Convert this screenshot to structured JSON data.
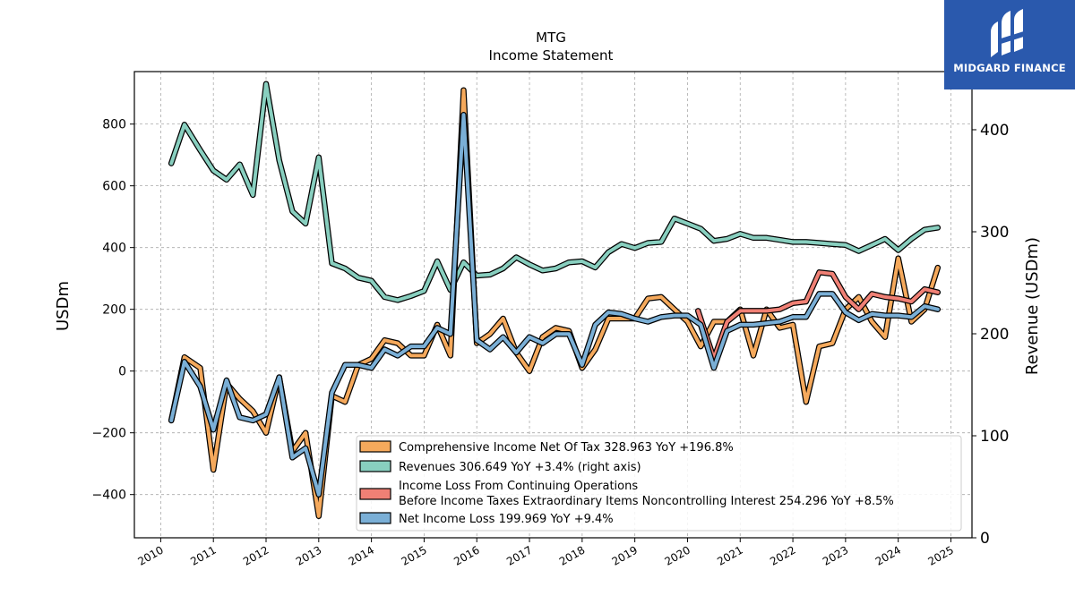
{
  "brand": {
    "name": "MIDGARD FINANCE",
    "color": "#2a59ad",
    "logo_icon": "midgard-logo-icon"
  },
  "chart_data": {
    "type": "line",
    "title": "MTG",
    "subtitle": "Income Statement",
    "ylabel": "USDm",
    "y2label": "Revenue (USDm)",
    "ylim": [
      -540,
      970
    ],
    "y2lim": [
      0,
      457
    ],
    "yticks": [
      -400,
      -200,
      0,
      200,
      400,
      600,
      800
    ],
    "y2ticks": [
      0,
      100,
      200,
      300,
      400
    ],
    "xlim": [
      2009.5,
      2025.4
    ],
    "xticks": [
      "2010",
      "2011",
      "2012",
      "2013",
      "2014",
      "2015",
      "2016",
      "2017",
      "2018",
      "2019",
      "2020",
      "2021",
      "2022",
      "2023",
      "2024",
      "2025"
    ],
    "grid": true,
    "legend_position": "lower-right",
    "series": [
      {
        "name": "Comprehensive Income Net Of Tax",
        "legend": "Comprehensive Income Net Of Tax  328.963 YoY +196.8%",
        "color": "#f5a95c",
        "axis": "left",
        "x": [
          2010.2,
          2010.45,
          2010.75,
          2011.0,
          2011.25,
          2011.5,
          2011.75,
          2012.0,
          2012.25,
          2012.5,
          2012.75,
          2013.0,
          2013.25,
          2013.5,
          2013.75,
          2014.0,
          2014.25,
          2014.5,
          2014.75,
          2015.0,
          2015.25,
          2015.5,
          2015.75,
          2016.0,
          2016.25,
          2016.5,
          2016.75,
          2017.0,
          2017.25,
          2017.5,
          2017.75,
          2018.0,
          2018.25,
          2018.5,
          2018.75,
          2019.0,
          2019.25,
          2019.5,
          2019.75,
          2020.0,
          2020.25,
          2020.5,
          2020.75,
          2021.0,
          2021.25,
          2021.5,
          2021.75,
          2022.0,
          2022.25,
          2022.5,
          2022.75,
          2023.0,
          2023.25,
          2023.5,
          2023.75,
          2024.0,
          2024.25,
          2024.5,
          2024.75
        ],
        "values": [
          -160,
          45,
          10,
          -320,
          -40,
          -90,
          -130,
          -200,
          -20,
          -260,
          -200,
          -470,
          -80,
          -100,
          20,
          40,
          100,
          90,
          50,
          50,
          150,
          50,
          910,
          90,
          120,
          170,
          60,
          0,
          110,
          140,
          130,
          10,
          70,
          170,
          170,
          170,
          235,
          240,
          200,
          160,
          80,
          160,
          160,
          200,
          50,
          200,
          140,
          150,
          -100,
          80,
          90,
          200,
          240,
          160,
          110,
          365,
          160,
          200,
          335
        ]
      },
      {
        "name": "Revenues",
        "legend": "Revenues  306.649 YoY +3.4% (right axis)",
        "color": "#88cfbf",
        "axis": "right",
        "x": [
          2010.2,
          2010.45,
          2010.75,
          2011.0,
          2011.25,
          2011.5,
          2011.75,
          2012.0,
          2012.25,
          2012.5,
          2012.75,
          2013.0,
          2013.25,
          2013.5,
          2013.75,
          2014.0,
          2014.25,
          2014.5,
          2014.75,
          2015.0,
          2015.25,
          2015.5,
          2015.75,
          2016.0,
          2016.25,
          2016.5,
          2016.75,
          2017.0,
          2017.25,
          2017.5,
          2017.75,
          2018.0,
          2018.25,
          2018.5,
          2018.75,
          2019.0,
          2019.25,
          2019.5,
          2019.75,
          2020.0,
          2020.25,
          2020.5,
          2020.75,
          2021.0,
          2021.25,
          2021.5,
          2021.75,
          2022.0,
          2022.25,
          2022.5,
          2022.75,
          2023.0,
          2023.25,
          2023.5,
          2023.75,
          2024.0,
          2024.25,
          2024.5,
          2024.75
        ],
        "values": [
          367,
          405,
          380,
          360,
          351,
          366,
          336,
          445,
          370,
          320,
          308,
          373,
          269,
          264,
          255,
          252,
          236,
          233,
          237,
          242,
          271,
          243,
          270,
          257,
          258,
          264,
          275,
          268,
          262,
          264,
          270,
          271,
          265,
          280,
          288,
          284,
          289,
          290,
          313,
          308,
          303,
          291,
          293,
          298,
          294,
          294,
          292,
          290,
          290,
          289,
          288,
          287,
          281,
          287,
          293,
          282,
          293,
          302,
          304
        ]
      },
      {
        "name": "Income Loss From Continuing Operations Before Income Taxes Extraordinary Items Noncontrolling Interest",
        "legend_line1": "Income Loss From Continuing Operations",
        "legend_line2": "Before Income Taxes Extraordinary Items Noncontrolling Interest  254.296 YoY +8.5%",
        "color": "#f08075",
        "axis": "left",
        "x": [
          2020.2,
          2020.5,
          2020.75,
          2021.0,
          2021.25,
          2021.5,
          2021.75,
          2022.0,
          2022.25,
          2022.5,
          2022.75,
          2023.0,
          2023.25,
          2023.5,
          2023.75,
          2024.0,
          2024.25,
          2024.5,
          2024.75
        ],
        "values": [
          195,
          40,
          160,
          195,
          195,
          195,
          200,
          220,
          225,
          320,
          315,
          240,
          200,
          250,
          240,
          235,
          225,
          265,
          255
        ]
      },
      {
        "name": "Net Income Loss",
        "legend": "Net Income Loss  199.969 YoY +9.4%",
        "color": "#7aafd6",
        "axis": "left",
        "x": [
          2010.2,
          2010.45,
          2010.75,
          2011.0,
          2011.25,
          2011.5,
          2011.75,
          2012.0,
          2012.25,
          2012.5,
          2012.75,
          2013.0,
          2013.25,
          2013.5,
          2013.75,
          2014.0,
          2014.25,
          2014.5,
          2014.75,
          2015.0,
          2015.25,
          2015.5,
          2015.75,
          2016.0,
          2016.25,
          2016.5,
          2016.75,
          2017.0,
          2017.25,
          2017.5,
          2017.75,
          2018.0,
          2018.25,
          2018.5,
          2018.75,
          2019.0,
          2019.25,
          2019.5,
          2019.75,
          2020.0,
          2020.25,
          2020.5,
          2020.75,
          2021.0,
          2021.25,
          2021.5,
          2021.75,
          2022.0,
          2022.25,
          2022.5,
          2022.75,
          2023.0,
          2023.25,
          2023.5,
          2023.75,
          2024.0,
          2024.25,
          2024.5,
          2024.75
        ],
        "values": [
          -160,
          30,
          -50,
          -190,
          -30,
          -150,
          -160,
          -140,
          -20,
          -280,
          -250,
          -400,
          -70,
          20,
          20,
          10,
          70,
          50,
          80,
          80,
          140,
          120,
          830,
          100,
          70,
          110,
          60,
          110,
          90,
          120,
          120,
          20,
          150,
          190,
          185,
          170,
          160,
          175,
          180,
          180,
          150,
          10,
          130,
          150,
          150,
          155,
          160,
          175,
          175,
          250,
          250,
          190,
          165,
          185,
          180,
          180,
          175,
          210,
          200
        ]
      }
    ]
  }
}
